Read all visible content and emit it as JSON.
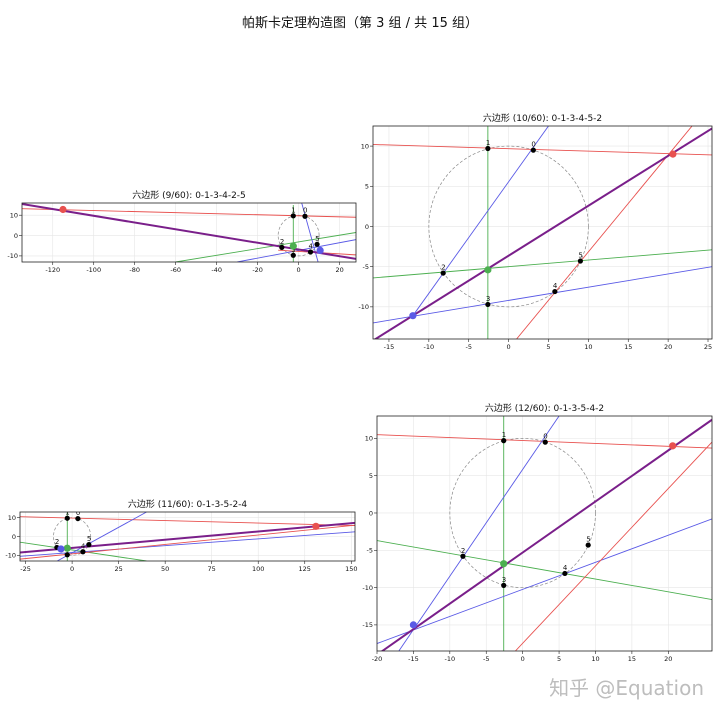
{
  "figure": {
    "suptitle": "帕斯卡定理构造图（第 3 组 / 共 15 组）",
    "watermark": "知乎 @Equation"
  },
  "colors": {
    "red": "#e8514f",
    "green": "#4caf50",
    "blue": "#5a5ae6",
    "pascal": "#7a1f8a",
    "circle": "#888888",
    "point": "#000000"
  },
  "chart_data": [
    {
      "type": "scatter",
      "title": "六边形 (9/60): 0-1-3-4-2-5",
      "xlim": [
        -135,
        28
      ],
      "ylim": [
        -13,
        16
      ],
      "xticks": [
        -120,
        -100,
        -80,
        -60,
        -40,
        -20,
        0,
        20
      ],
      "yticks": [
        -10,
        0,
        10
      ],
      "grid": true,
      "circle": {
        "cx": 0,
        "cy": 0,
        "r": 10
      },
      "points": [
        {
          "label": "0",
          "x": 3.1,
          "y": 9.5
        },
        {
          "label": "1",
          "x": -2.6,
          "y": 9.7
        },
        {
          "label": "2",
          "x": -8.2,
          "y": -5.8
        },
        {
          "label": "3",
          "x": -2.6,
          "y": -9.7
        },
        {
          "label": "4",
          "x": 5.8,
          "y": -8.1
        },
        {
          "label": "5",
          "x": 9.0,
          "y": -4.3
        }
      ],
      "lines": [
        {
          "color": "red",
          "from": [
            -135,
            13.2
          ],
          "to": [
            28,
            9.0
          ]
        },
        {
          "color": "green",
          "from": [
            -2.6,
            15
          ],
          "to": [
            -2.6,
            -13
          ]
        },
        {
          "color": "green",
          "from": [
            -60,
            -13
          ],
          "to": [
            28,
            1.5
          ]
        },
        {
          "color": "blue",
          "from": [
            -30,
            -13
          ],
          "to": [
            28,
            -2.0
          ]
        },
        {
          "color": "blue",
          "from": [
            9.5,
            -13
          ],
          "to": [
            1.5,
            16
          ]
        },
        {
          "color": "red",
          "from": [
            -10,
            -7.2
          ],
          "to": [
            28,
            -9.5
          ]
        }
      ],
      "pascal_line": {
        "from": [
          -135,
          15.5
        ],
        "to": [
          28,
          -11.5
        ]
      },
      "intersections": [
        {
          "color": "red",
          "x": -115,
          "y": 12.8
        },
        {
          "color": "green",
          "x": -2.6,
          "y": -5.2
        },
        {
          "color": "blue",
          "x": 10.5,
          "y": -7.3
        }
      ]
    },
    {
      "type": "scatter",
      "title": "六边形 (10/60): 0-1-3-4-5-2",
      "xlim": [
        -17,
        25.5
      ],
      "ylim": [
        -14,
        12.5
      ],
      "xticks": [
        -15,
        -10,
        -5,
        0,
        5,
        10,
        15,
        20,
        25
      ],
      "yticks": [
        -10,
        -5,
        0,
        5,
        10
      ],
      "grid": true,
      "circle": {
        "cx": 0,
        "cy": 0,
        "r": 10
      },
      "points": [
        {
          "label": "0",
          "x": 3.1,
          "y": 9.5
        },
        {
          "label": "1",
          "x": -2.6,
          "y": 9.7
        },
        {
          "label": "2",
          "x": -8.2,
          "y": -5.8
        },
        {
          "label": "3",
          "x": -2.6,
          "y": -9.7
        },
        {
          "label": "4",
          "x": 5.8,
          "y": -8.1
        },
        {
          "label": "5",
          "x": 9.0,
          "y": -4.3
        }
      ],
      "lines": [
        {
          "color": "red",
          "from": [
            -17,
            10.2
          ],
          "to": [
            25.5,
            8.9
          ]
        },
        {
          "color": "green",
          "from": [
            -2.6,
            12.5
          ],
          "to": [
            -2.6,
            -14
          ]
        },
        {
          "color": "green",
          "from": [
            -17,
            -6.4
          ],
          "to": [
            25.5,
            -2.9
          ]
        },
        {
          "color": "blue",
          "from": [
            -12,
            -11.1
          ],
          "to": [
            5,
            12.5
          ]
        },
        {
          "color": "blue",
          "from": [
            -17,
            -12.0
          ],
          "to": [
            25.5,
            -5.0
          ]
        },
        {
          "color": "red",
          "from": [
            1,
            -14
          ],
          "to": [
            23,
            12.5
          ]
        }
      ],
      "pascal_line": {
        "from": [
          -17,
          -14.2
        ],
        "to": [
          25.5,
          12.2
        ]
      },
      "intersections": [
        {
          "color": "red",
          "x": 20.6,
          "y": 9.0
        },
        {
          "color": "green",
          "x": -2.6,
          "y": -5.4
        },
        {
          "color": "blue",
          "x": -12.0,
          "y": -11.1
        }
      ]
    },
    {
      "type": "scatter",
      "title": "六边形 (11/60): 0-1-3-5-2-4",
      "xlim": [
        -28,
        152
      ],
      "ylim": [
        -13,
        13
      ],
      "xticks": [
        -25,
        0,
        25,
        50,
        75,
        100,
        125,
        150
      ],
      "yticks": [
        -10,
        0,
        10
      ],
      "grid": true,
      "circle": {
        "cx": 0,
        "cy": 0,
        "r": 10
      },
      "points": [
        {
          "label": "0",
          "x": 3.1,
          "y": 9.5
        },
        {
          "label": "1",
          "x": -2.6,
          "y": 9.7
        },
        {
          "label": "2",
          "x": -8.2,
          "y": -5.8
        },
        {
          "label": "3",
          "x": -2.6,
          "y": -9.7
        },
        {
          "label": "4",
          "x": 5.8,
          "y": -8.1
        },
        {
          "label": "5",
          "x": 9.0,
          "y": -4.3
        }
      ],
      "lines": [
        {
          "color": "red",
          "from": [
            -28,
            10.5
          ],
          "to": [
            152,
            5.8
          ]
        },
        {
          "color": "green",
          "from": [
            -2.6,
            13
          ],
          "to": [
            -2.6,
            -13
          ]
        },
        {
          "color": "green",
          "from": [
            -28,
            -3.0
          ],
          "to": [
            40,
            -13
          ]
        },
        {
          "color": "blue",
          "from": [
            -28,
            -10.5
          ],
          "to": [
            152,
            2.5
          ]
        },
        {
          "color": "blue",
          "from": [
            -8,
            -13
          ],
          "to": [
            40,
            13
          ]
        },
        {
          "color": "red",
          "from": [
            -28,
            -12.0
          ],
          "to": [
            152,
            6.0
          ]
        }
      ],
      "pascal_line": {
        "from": [
          -28,
          -8.5
        ],
        "to": [
          152,
          7.2
        ]
      },
      "intersections": [
        {
          "color": "red",
          "x": 131,
          "y": 5.4
        },
        {
          "color": "green",
          "x": -2.6,
          "y": -6.2
        },
        {
          "color": "blue",
          "x": -6.0,
          "y": -6.6
        }
      ]
    },
    {
      "type": "scatter",
      "title": "六边形 (12/60): 0-1-3-5-4-2",
      "xlim": [
        -20,
        26
      ],
      "ylim": [
        -18.5,
        13
      ],
      "xticks": [
        -20,
        -15,
        -10,
        -5,
        0,
        5,
        10,
        15,
        20
      ],
      "yticks": [
        -15,
        -10,
        -5,
        0,
        5,
        10
      ],
      "grid": true,
      "circle": {
        "cx": 0,
        "cy": 0,
        "r": 10
      },
      "points": [
        {
          "label": "0",
          "x": 3.1,
          "y": 9.5
        },
        {
          "label": "1",
          "x": -2.6,
          "y": 9.7
        },
        {
          "label": "2",
          "x": -8.2,
          "y": -5.8
        },
        {
          "label": "3",
          "x": -2.6,
          "y": -9.7
        },
        {
          "label": "4",
          "x": 5.8,
          "y": -8.1
        },
        {
          "label": "5",
          "x": 9.0,
          "y": -4.3
        }
      ],
      "lines": [
        {
          "color": "red",
          "from": [
            -20,
            10.5
          ],
          "to": [
            26,
            8.7
          ]
        },
        {
          "color": "green",
          "from": [
            -2.6,
            13
          ],
          "to": [
            -2.6,
            -18.5
          ]
        },
        {
          "color": "green",
          "from": [
            -20,
            -3.7
          ],
          "to": [
            26,
            -11.6
          ]
        },
        {
          "color": "blue",
          "from": [
            -17,
            -18.5
          ],
          "to": [
            5,
            13
          ]
        },
        {
          "color": "blue",
          "from": [
            -20,
            -17.5
          ],
          "to": [
            26,
            -0.8
          ]
        },
        {
          "color": "red",
          "from": [
            -1,
            -18.5
          ],
          "to": [
            26,
            9.5
          ]
        }
      ],
      "pascal_line": {
        "from": [
          -20,
          -19.0
        ],
        "to": [
          26,
          12.5
        ]
      },
      "intersections": [
        {
          "color": "red",
          "x": 20.6,
          "y": 9.0
        },
        {
          "color": "green",
          "x": -2.6,
          "y": -6.8
        },
        {
          "color": "blue",
          "x": -15.0,
          "y": -15.0
        }
      ]
    }
  ]
}
